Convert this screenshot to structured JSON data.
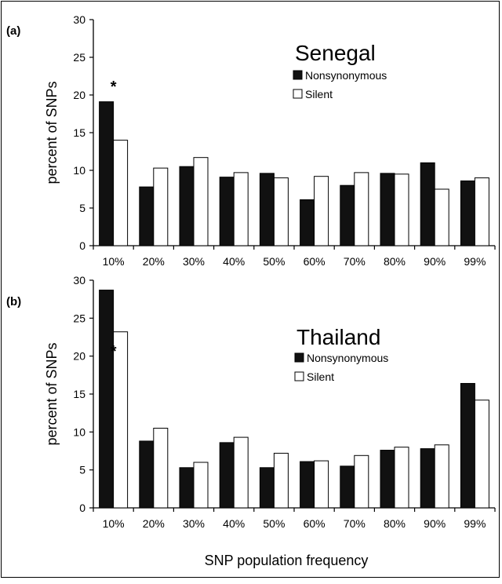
{
  "panels": [
    {
      "label": "(a)"
    },
    {
      "label": "(b)"
    }
  ],
  "shared_xlabel": "SNP population frequency",
  "colors": {
    "nonsynonymous": "#111111",
    "silent": "#ffffff",
    "axis": "#000000"
  },
  "chart_data": [
    {
      "type": "bar",
      "title": "Senegal",
      "ylabel": "percent of SNPs",
      "xlabel": "",
      "categories": [
        "10%",
        "20%",
        "30%",
        "40%",
        "50%",
        "60%",
        "70%",
        "80%",
        "90%",
        "99%"
      ],
      "ylim": [
        0,
        30
      ],
      "yticks": [
        0,
        5,
        10,
        15,
        20,
        25,
        30
      ],
      "legend_position": "top-right",
      "annotation": {
        "text": "*",
        "category": "10%"
      },
      "series": [
        {
          "name": "Nonsynonymous",
          "values": [
            19.1,
            7.8,
            10.5,
            9.1,
            9.6,
            6.1,
            8.0,
            9.6,
            11.0,
            8.6
          ]
        },
        {
          "name": "Silent",
          "values": [
            14.0,
            10.3,
            11.7,
            9.7,
            9.0,
            9.2,
            9.7,
            9.5,
            7.5,
            9.0
          ]
        }
      ]
    },
    {
      "type": "bar",
      "title": "Thailand",
      "ylabel": "percent of SNPs",
      "xlabel": "SNP population frequency",
      "categories": [
        "10%",
        "20%",
        "30%",
        "40%",
        "50%",
        "60%",
        "70%",
        "80%",
        "90%",
        "99%"
      ],
      "ylim": [
        0,
        30
      ],
      "yticks": [
        0,
        5,
        10,
        15,
        20,
        25,
        30
      ],
      "legend_position": "top-right",
      "annotation": {
        "text": "*",
        "category": "10%"
      },
      "series": [
        {
          "name": "Nonsynonymous",
          "values": [
            28.7,
            8.8,
            5.3,
            8.6,
            5.3,
            6.1,
            5.5,
            7.6,
            7.8,
            16.4
          ]
        },
        {
          "name": "Silent",
          "values": [
            23.2,
            10.5,
            6.0,
            9.3,
            7.2,
            6.2,
            6.9,
            8.0,
            8.3,
            14.2
          ]
        }
      ]
    }
  ]
}
